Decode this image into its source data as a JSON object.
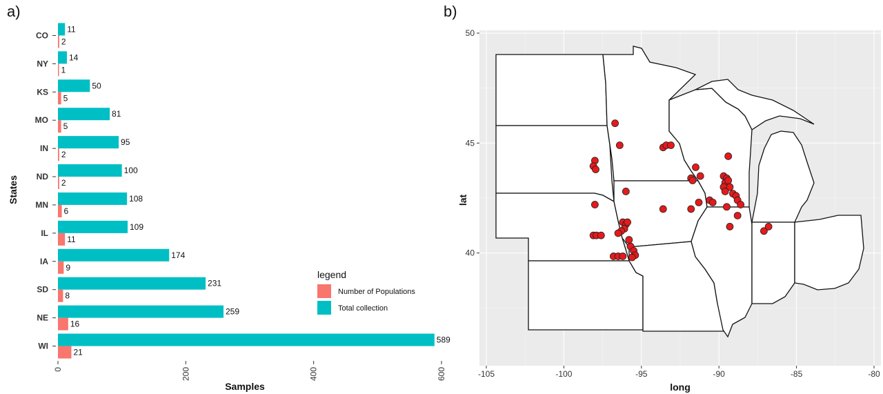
{
  "panel_a_label": "a)",
  "panel_b_label": "b)",
  "colors": {
    "populations": "#F8766D",
    "collection": "#00BFC4",
    "map_bg": "#EBEBEB",
    "point": "#E41A1C"
  },
  "chart_data": [
    {
      "type": "bar",
      "orientation": "horizontal",
      "categories": [
        "CO",
        "NY",
        "KS",
        "MO",
        "IN",
        "ND",
        "MN",
        "IL",
        "IA",
        "SD",
        "NE",
        "WI"
      ],
      "series": [
        {
          "name": "Total collection",
          "values": [
            11,
            14,
            50,
            81,
            95,
            100,
            108,
            109,
            174,
            231,
            259,
            589
          ]
        },
        {
          "name": "Number of Populations",
          "values": [
            2,
            1,
            5,
            5,
            2,
            2,
            6,
            11,
            9,
            8,
            16,
            21
          ]
        }
      ],
      "xlabel": "Samples",
      "ylabel": "States",
      "xlim": [
        0,
        600
      ],
      "xticks": [
        "0",
        "200",
        "400",
        "600"
      ],
      "legend": {
        "title": "legend",
        "position": "bottom-right",
        "entries": [
          "Number of Populations",
          "Total collection"
        ]
      },
      "grid": false
    },
    {
      "type": "scatter",
      "xlabel": "long",
      "ylabel": "lat",
      "xlim": [
        -105,
        -80
      ],
      "ylim": [
        35,
        50
      ],
      "xticks": [
        "-105",
        "-100",
        "-95",
        "-90",
        "-85",
        "-80"
      ],
      "yticks": [
        "40",
        "45",
        "50"
      ],
      "grid": true,
      "points": [
        {
          "x": -96.7,
          "y": 45.9
        },
        {
          "x": -96.4,
          "y": 44.9
        },
        {
          "x": -98.0,
          "y": 44.2
        },
        {
          "x": -98.1,
          "y": 43.95
        },
        {
          "x": -97.95,
          "y": 43.8
        },
        {
          "x": -98.0,
          "y": 42.2
        },
        {
          "x": -98.1,
          "y": 40.8
        },
        {
          "x": -97.9,
          "y": 40.8
        },
        {
          "x": -97.6,
          "y": 40.8
        },
        {
          "x": -96.8,
          "y": 39.85
        },
        {
          "x": -96.5,
          "y": 39.85
        },
        {
          "x": -96.2,
          "y": 39.85
        },
        {
          "x": -96.0,
          "y": 42.8
        },
        {
          "x": -96.2,
          "y": 41.4
        },
        {
          "x": -96.0,
          "y": 41.3
        },
        {
          "x": -95.9,
          "y": 41.4
        },
        {
          "x": -96.1,
          "y": 41.1
        },
        {
          "x": -96.3,
          "y": 41.0
        },
        {
          "x": -96.5,
          "y": 40.9
        },
        {
          "x": -95.8,
          "y": 40.6
        },
        {
          "x": -95.7,
          "y": 40.3
        },
        {
          "x": -95.5,
          "y": 40.1
        },
        {
          "x": -95.4,
          "y": 39.9
        },
        {
          "x": -95.6,
          "y": 39.8
        },
        {
          "x": -93.6,
          "y": 44.8
        },
        {
          "x": -93.4,
          "y": 44.9
        },
        {
          "x": -93.1,
          "y": 44.9
        },
        {
          "x": -93.6,
          "y": 42.0
        },
        {
          "x": -91.8,
          "y": 42.0
        },
        {
          "x": -91.5,
          "y": 43.9
        },
        {
          "x": -91.8,
          "y": 43.4
        },
        {
          "x": -91.7,
          "y": 43.3
        },
        {
          "x": -91.2,
          "y": 43.5
        },
        {
          "x": -91.3,
          "y": 42.3
        },
        {
          "x": -90.6,
          "y": 42.4
        },
        {
          "x": -90.4,
          "y": 42.3
        },
        {
          "x": -89.4,
          "y": 44.4
        },
        {
          "x": -89.7,
          "y": 43.5
        },
        {
          "x": -89.5,
          "y": 43.4
        },
        {
          "x": -89.6,
          "y": 43.2
        },
        {
          "x": -89.7,
          "y": 43.0
        },
        {
          "x": -89.4,
          "y": 43.3
        },
        {
          "x": -89.3,
          "y": 43.0
        },
        {
          "x": -89.6,
          "y": 42.8
        },
        {
          "x": -89.1,
          "y": 42.7
        },
        {
          "x": -88.9,
          "y": 42.6
        },
        {
          "x": -88.8,
          "y": 42.4
        },
        {
          "x": -88.6,
          "y": 42.2
        },
        {
          "x": -89.5,
          "y": 42.1
        },
        {
          "x": -88.8,
          "y": 41.7
        },
        {
          "x": -89.3,
          "y": 41.2
        },
        {
          "x": -87.1,
          "y": 41.0
        },
        {
          "x": -86.8,
          "y": 41.2
        }
      ]
    }
  ]
}
